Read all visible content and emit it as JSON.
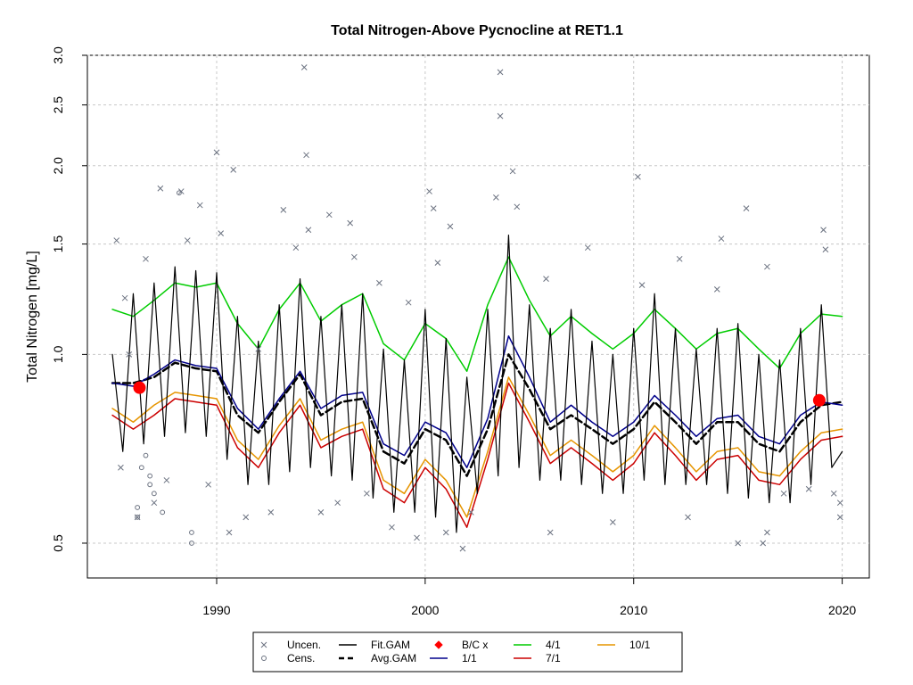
{
  "chart_data": {
    "type": "line",
    "title": "Total Nitrogen-Above Pycnocline at RET1.1",
    "xlabel": "",
    "ylabel": "Total Nitrogen [mg/L]",
    "y_scale": "log",
    "xlim": [
      1983.8,
      2021.3
    ],
    "ylim": [
      0.44,
      3.0
    ],
    "x_ticks": [
      1990,
      2000,
      2010,
      2020
    ],
    "y_ticks": [
      0.5,
      1.0,
      1.5,
      2.0,
      2.5,
      3.0
    ],
    "x_tick_labels": [
      "1990",
      "2000",
      "2010",
      "2020"
    ],
    "y_tick_labels": [
      "0.5",
      "1.0",
      "1.5",
      "2.0",
      "2.5",
      "3.0"
    ],
    "grid": true,
    "legend_position": "bottom",
    "legend": [
      {
        "label": "Uncen.",
        "marker": "x",
        "color": "#6b7280"
      },
      {
        "label": "Cens.",
        "marker": "circle",
        "color": "#6b7280"
      },
      {
        "label": "Fit.GAM",
        "line": "solid",
        "color": "#000000"
      },
      {
        "label": "Avg.GAM",
        "line": "dashed",
        "color": "#000000"
      },
      {
        "label": "B/C x",
        "marker": "diamond",
        "color": "#ff0000"
      },
      {
        "label": "1/1",
        "line": "solid",
        "color": "#00008b"
      },
      {
        "label": "4/1",
        "line": "solid",
        "color": "#00cc00"
      },
      {
        "label": "7/1",
        "line": "solid",
        "color": "#cc0000"
      },
      {
        "label": "10/1",
        "line": "solid",
        "color": "#e69500"
      }
    ],
    "baseline_change_points": [
      {
        "x": 1986.3,
        "y": 0.885
      },
      {
        "x": 2018.9,
        "y": 0.845
      }
    ],
    "series": [
      {
        "name": "Avg.GAM",
        "x": [
          1985.0,
          1986.0,
          1987.0,
          1988.0,
          1989.0,
          1990.0,
          1991.0,
          1992.0,
          1993.0,
          1994.0,
          1995.0,
          1996.0,
          1997.0,
          1998.0,
          1999.0,
          2000.0,
          2001.0,
          2002.0,
          2003.0,
          2004.0,
          2005.0,
          2006.0,
          2007.0,
          2008.0,
          2009.0,
          2010.0,
          2011.0,
          2012.0,
          2013.0,
          2014.0,
          2015.0,
          2016.0,
          2017.0,
          2018.0,
          2019.0,
          2020.0
        ],
        "y": [
          0.9,
          0.9,
          0.92,
          0.97,
          0.95,
          0.94,
          0.8,
          0.75,
          0.84,
          0.93,
          0.8,
          0.84,
          0.85,
          0.7,
          0.67,
          0.76,
          0.73,
          0.64,
          0.76,
          1.0,
          0.88,
          0.76,
          0.8,
          0.76,
          0.72,
          0.76,
          0.84,
          0.78,
          0.72,
          0.78,
          0.78,
          0.72,
          0.7,
          0.78,
          0.83,
          0.84
        ]
      },
      {
        "name": "1/1",
        "x": [
          1985.0,
          1986.0,
          1987.0,
          1988.0,
          1989.0,
          1990.0,
          1991.0,
          1992.0,
          1993.0,
          1994.0,
          1995.0,
          1996.0,
          1997.0,
          1998.0,
          1999.0,
          2000.0,
          2001.0,
          2002.0,
          2003.0,
          2004.0,
          2005.0,
          2006.0,
          2007.0,
          2008.0,
          2009.0,
          2010.0,
          2011.0,
          2012.0,
          2013.0,
          2014.0,
          2015.0,
          2016.0,
          2017.0,
          2018.0,
          2019.0,
          2020.0
        ],
        "y": [
          0.9,
          0.89,
          0.93,
          0.98,
          0.96,
          0.95,
          0.82,
          0.76,
          0.85,
          0.94,
          0.82,
          0.86,
          0.87,
          0.72,
          0.69,
          0.78,
          0.75,
          0.66,
          0.79,
          1.07,
          0.92,
          0.78,
          0.83,
          0.78,
          0.74,
          0.78,
          0.86,
          0.8,
          0.74,
          0.79,
          0.8,
          0.74,
          0.72,
          0.8,
          0.84,
          0.83
        ]
      },
      {
        "name": "4/1",
        "x": [
          1985.0,
          1986.0,
          1987.0,
          1988.0,
          1989.0,
          1990.0,
          1991.0,
          1992.0,
          1993.0,
          1994.0,
          1995.0,
          1996.0,
          1997.0,
          1998.0,
          1999.0,
          2000.0,
          2001.0,
          2002.0,
          2003.0,
          2004.0,
          2005.0,
          2006.0,
          2007.0,
          2008.0,
          2009.0,
          2010.0,
          2011.0,
          2012.0,
          2013.0,
          2014.0,
          2015.0,
          2016.0,
          2017.0,
          2018.0,
          2019.0,
          2020.0
        ],
        "y": [
          1.18,
          1.15,
          1.22,
          1.3,
          1.28,
          1.3,
          1.12,
          1.02,
          1.18,
          1.3,
          1.13,
          1.2,
          1.25,
          1.04,
          0.98,
          1.12,
          1.06,
          0.94,
          1.2,
          1.43,
          1.22,
          1.07,
          1.15,
          1.08,
          1.02,
          1.08,
          1.18,
          1.1,
          1.02,
          1.08,
          1.1,
          1.02,
          0.95,
          1.08,
          1.16,
          1.15
        ]
      },
      {
        "name": "7/1",
        "x": [
          1985.0,
          1986.0,
          1987.0,
          1988.0,
          1989.0,
          1990.0,
          1991.0,
          1992.0,
          1993.0,
          1994.0,
          1995.0,
          1996.0,
          1997.0,
          1998.0,
          1999.0,
          2000.0,
          2001.0,
          2002.0,
          2003.0,
          2004.0,
          2005.0,
          2006.0,
          2007.0,
          2008.0,
          2009.0,
          2010.0,
          2011.0,
          2012.0,
          2013.0,
          2014.0,
          2015.0,
          2016.0,
          2017.0,
          2018.0,
          2019.0,
          2020.0
        ],
        "y": [
          0.8,
          0.76,
          0.8,
          0.85,
          0.84,
          0.83,
          0.71,
          0.66,
          0.75,
          0.83,
          0.71,
          0.74,
          0.76,
          0.61,
          0.58,
          0.66,
          0.61,
          0.53,
          0.68,
          0.9,
          0.78,
          0.67,
          0.71,
          0.67,
          0.63,
          0.67,
          0.75,
          0.69,
          0.63,
          0.68,
          0.69,
          0.63,
          0.62,
          0.68,
          0.73,
          0.74
        ]
      },
      {
        "name": "10/1",
        "x": [
          1985.0,
          1986.0,
          1987.0,
          1988.0,
          1989.0,
          1990.0,
          1991.0,
          1992.0,
          1993.0,
          1994.0,
          1995.0,
          1996.0,
          1997.0,
          1998.0,
          1999.0,
          2000.0,
          2001.0,
          2002.0,
          2003.0,
          2004.0,
          2005.0,
          2006.0,
          2007.0,
          2008.0,
          2009.0,
          2010.0,
          2011.0,
          2012.0,
          2013.0,
          2014.0,
          2015.0,
          2016.0,
          2017.0,
          2018.0,
          2019.0,
          2020.0
        ],
        "y": [
          0.82,
          0.78,
          0.83,
          0.87,
          0.86,
          0.85,
          0.73,
          0.68,
          0.77,
          0.85,
          0.73,
          0.76,
          0.78,
          0.63,
          0.6,
          0.68,
          0.63,
          0.55,
          0.7,
          0.92,
          0.8,
          0.69,
          0.73,
          0.69,
          0.65,
          0.69,
          0.77,
          0.71,
          0.65,
          0.7,
          0.71,
          0.65,
          0.64,
          0.7,
          0.75,
          0.76
        ]
      }
    ],
    "fit_gam_note": "",
    "fit_gam": {
      "x": [
        1985.0,
        1985.5,
        1986.0,
        1986.5,
        1987.0,
        1987.5,
        1988.0,
        1988.5,
        1989.0,
        1989.5,
        1990.0,
        1990.5,
        1991.0,
        1991.5,
        1992.0,
        1992.5,
        1993.0,
        1993.5,
        1994.0,
        1994.5,
        1995.0,
        1995.5,
        1996.0,
        1996.5,
        1997.0,
        1997.5,
        1998.0,
        1998.5,
        1999.0,
        1999.5,
        2000.0,
        2000.5,
        2001.0,
        2001.5,
        2002.0,
        2002.5,
        2003.0,
        2003.5,
        2004.0,
        2004.5,
        2005.0,
        2005.5,
        2006.0,
        2006.5,
        2007.0,
        2007.5,
        2008.0,
        2008.5,
        2009.0,
        2009.5,
        2010.0,
        2010.5,
        2011.0,
        2011.5,
        2012.0,
        2012.5,
        2013.0,
        2013.5,
        2014.0,
        2014.5,
        2015.0,
        2015.5,
        2016.0,
        2016.5,
        2017.0,
        2017.5,
        2018.0,
        2018.5,
        2019.0,
        2019.5,
        2020.0
      ],
      "y": [
        1.0,
        0.7,
        1.25,
        0.72,
        1.3,
        0.74,
        1.38,
        0.75,
        1.36,
        0.74,
        1.35,
        0.68,
        1.15,
        0.62,
        1.05,
        0.62,
        1.2,
        0.65,
        1.32,
        0.66,
        1.15,
        0.64,
        1.2,
        0.63,
        1.25,
        0.59,
        1.02,
        0.56,
        0.98,
        0.56,
        1.18,
        0.55,
        1.06,
        0.52,
        0.92,
        0.6,
        1.18,
        0.64,
        1.55,
        0.66,
        1.2,
        0.63,
        1.1,
        0.63,
        1.18,
        0.62,
        1.05,
        0.6,
        1.0,
        0.6,
        1.1,
        0.63,
        1.25,
        0.62,
        1.1,
        0.62,
        1.02,
        0.62,
        1.1,
        0.6,
        1.12,
        0.59,
        1.0,
        0.58,
        0.98,
        0.58,
        1.1,
        0.62,
        1.2,
        0.66,
        0.7
      ]
    },
    "uncensored_points": [
      {
        "x": 1985.2,
        "y": 1.52
      },
      {
        "x": 1985.4,
        "y": 0.66
      },
      {
        "x": 1985.6,
        "y": 1.23
      },
      {
        "x": 1985.8,
        "y": 1.0
      },
      {
        "x": 1986.2,
        "y": 0.55
      },
      {
        "x": 1986.6,
        "y": 1.42
      },
      {
        "x": 1987.0,
        "y": 0.58
      },
      {
        "x": 1987.3,
        "y": 1.84
      },
      {
        "x": 1987.6,
        "y": 0.63
      },
      {
        "x": 1988.3,
        "y": 1.82
      },
      {
        "x": 1988.6,
        "y": 1.52
      },
      {
        "x": 1989.2,
        "y": 1.73
      },
      {
        "x": 1989.6,
        "y": 0.62
      },
      {
        "x": 1990.0,
        "y": 2.1
      },
      {
        "x": 1990.2,
        "y": 1.56
      },
      {
        "x": 1990.6,
        "y": 0.52
      },
      {
        "x": 1990.8,
        "y": 1.97
      },
      {
        "x": 1991.4,
        "y": 0.55
      },
      {
        "x": 1992.0,
        "y": 1.02
      },
      {
        "x": 1992.6,
        "y": 0.56
      },
      {
        "x": 1993.2,
        "y": 1.7
      },
      {
        "x": 1993.8,
        "y": 1.48
      },
      {
        "x": 1994.2,
        "y": 2.87
      },
      {
        "x": 1994.3,
        "y": 2.08
      },
      {
        "x": 1994.4,
        "y": 1.58
      },
      {
        "x": 1995.0,
        "y": 0.56
      },
      {
        "x": 1995.4,
        "y": 1.67
      },
      {
        "x": 1995.8,
        "y": 0.58
      },
      {
        "x": 1996.4,
        "y": 1.62
      },
      {
        "x": 1996.6,
        "y": 1.43
      },
      {
        "x": 1997.2,
        "y": 0.6
      },
      {
        "x": 1997.8,
        "y": 1.3
      },
      {
        "x": 1998.4,
        "y": 0.53
      },
      {
        "x": 1999.2,
        "y": 1.21
      },
      {
        "x": 1999.6,
        "y": 0.51
      },
      {
        "x": 2000.2,
        "y": 1.82
      },
      {
        "x": 2000.4,
        "y": 1.71
      },
      {
        "x": 2000.6,
        "y": 1.4
      },
      {
        "x": 2001.0,
        "y": 0.52
      },
      {
        "x": 2001.2,
        "y": 1.6
      },
      {
        "x": 2001.8,
        "y": 0.49
      },
      {
        "x": 2002.2,
        "y": 0.56
      },
      {
        "x": 2003.4,
        "y": 1.78
      },
      {
        "x": 2003.6,
        "y": 2.82
      },
      {
        "x": 2003.6,
        "y": 2.4
      },
      {
        "x": 2004.2,
        "y": 1.96
      },
      {
        "x": 2004.4,
        "y": 1.72
      },
      {
        "x": 2005.8,
        "y": 1.32
      },
      {
        "x": 2006.0,
        "y": 0.52
      },
      {
        "x": 2007.8,
        "y": 1.48
      },
      {
        "x": 2009.0,
        "y": 0.54
      },
      {
        "x": 2010.2,
        "y": 1.92
      },
      {
        "x": 2010.4,
        "y": 1.29
      },
      {
        "x": 2012.2,
        "y": 1.42
      },
      {
        "x": 2012.6,
        "y": 0.55
      },
      {
        "x": 2014.0,
        "y": 1.27
      },
      {
        "x": 2014.2,
        "y": 1.53
      },
      {
        "x": 2015.0,
        "y": 0.5
      },
      {
        "x": 2015.4,
        "y": 1.71
      },
      {
        "x": 2016.4,
        "y": 1.38
      },
      {
        "x": 2016.4,
        "y": 0.52
      },
      {
        "x": 2016.2,
        "y": 0.5
      },
      {
        "x": 2017.2,
        "y": 0.6
      },
      {
        "x": 2018.4,
        "y": 0.61
      },
      {
        "x": 2019.1,
        "y": 1.58
      },
      {
        "x": 2019.2,
        "y": 1.47
      },
      {
        "x": 2019.6,
        "y": 0.6
      },
      {
        "x": 2019.9,
        "y": 0.55
      },
      {
        "x": 2019.9,
        "y": 0.58
      }
    ],
    "censored_points": [
      {
        "x": 1986.2,
        "y": 0.57
      },
      {
        "x": 1986.2,
        "y": 0.55
      },
      {
        "x": 1986.6,
        "y": 0.69
      },
      {
        "x": 1986.8,
        "y": 0.64
      },
      {
        "x": 1986.8,
        "y": 0.62
      },
      {
        "x": 1987.4,
        "y": 0.56
      },
      {
        "x": 1988.2,
        "y": 1.81
      },
      {
        "x": 1988.8,
        "y": 0.52
      },
      {
        "x": 1988.8,
        "y": 0.5
      },
      {
        "x": 1987.0,
        "y": 0.6
      },
      {
        "x": 1986.4,
        "y": 0.66
      }
    ]
  },
  "colors": {
    "uncensored": "#6b7280",
    "censored": "#6b7280",
    "fit_gam": "#000000",
    "avg_gam": "#000000",
    "bc": "#ff0000",
    "s1": "#00008b",
    "s4": "#00cc00",
    "s7": "#cc0000",
    "s10": "#e69500"
  }
}
